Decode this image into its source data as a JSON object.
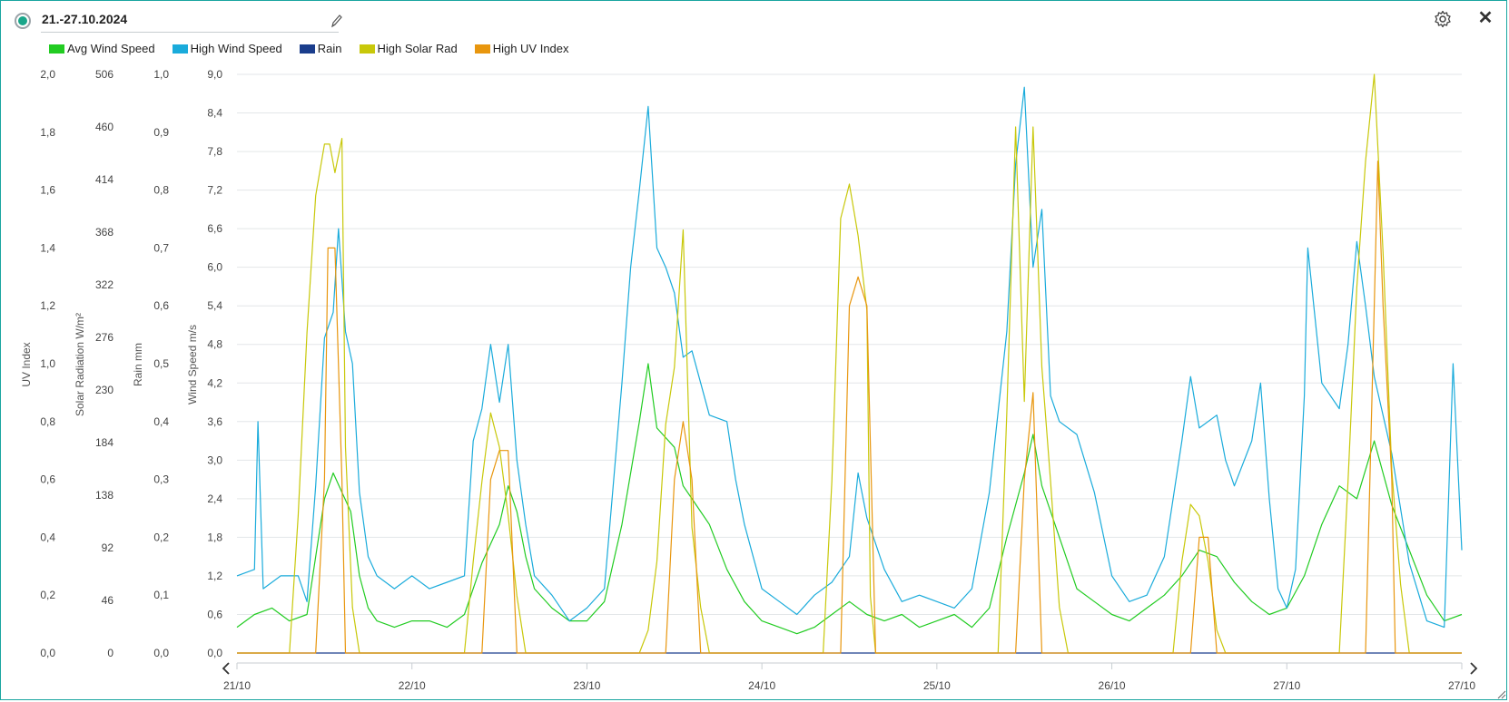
{
  "header": {
    "title": "21.-27.10.2024",
    "edit_icon": "pencil-icon",
    "settings_icon": "gear-icon",
    "close_label": "✕"
  },
  "legend": [
    {
      "label": "Avg Wind Speed",
      "color": "#22cc22"
    },
    {
      "label": "High Wind Speed",
      "color": "#1aabdb"
    },
    {
      "label": "Rain",
      "color": "#1a3d8c"
    },
    {
      "label": "High Solar Rad",
      "color": "#c8c80a"
    },
    {
      "label": "High UV Index",
      "color": "#e8960e"
    }
  ],
  "chart_data": {
    "type": "line",
    "axes": {
      "uv": {
        "label": "UV Index",
        "ticks": [
          "0,0",
          "0,2",
          "0,4",
          "0,6",
          "0,8",
          "1,0",
          "1,2",
          "1,4",
          "1,6",
          "1,8",
          "2,0"
        ],
        "range": [
          0,
          2
        ]
      },
      "solar": {
        "label": "Solar Radiation W/m²",
        "ticks": [
          "0",
          "46",
          "92",
          "138",
          "184",
          "230",
          "276",
          "322",
          "368",
          "414",
          "460",
          "506"
        ],
        "range": [
          0,
          506
        ]
      },
      "rain": {
        "label": "Rain mm",
        "ticks": [
          "0,0",
          "0,1",
          "0,2",
          "0,3",
          "0,4",
          "0,5",
          "0,6",
          "0,7",
          "0,8",
          "0,9",
          "1,0"
        ],
        "range": [
          0,
          1
        ]
      },
      "wind": {
        "label": "Wind Speed m/s",
        "ticks": [
          "0,0",
          "0,6",
          "1,2",
          "1,8",
          "2,4",
          "3,0",
          "3,6",
          "4,2",
          "4,8",
          "5,4",
          "6,0",
          "6,6",
          "7,2",
          "7,8",
          "8,4",
          "9,0"
        ],
        "range": [
          0,
          9
        ]
      }
    },
    "x_ticks": [
      "21/10",
      "22/10",
      "23/10",
      "24/10",
      "25/10",
      "26/10",
      "27/10",
      "27/10"
    ],
    "x_range_days": [
      0,
      7
    ],
    "series": [
      {
        "name": "Avg Wind Speed",
        "color": "#22cc22",
        "axis": "wind",
        "points": [
          [
            0,
            0.4
          ],
          [
            0.1,
            0.6
          ],
          [
            0.2,
            0.7
          ],
          [
            0.3,
            0.5
          ],
          [
            0.4,
            0.6
          ],
          [
            0.45,
            1.5
          ],
          [
            0.5,
            2.4
          ],
          [
            0.55,
            2.8
          ],
          [
            0.6,
            2.5
          ],
          [
            0.65,
            2.2
          ],
          [
            0.7,
            1.2
          ],
          [
            0.75,
            0.7
          ],
          [
            0.8,
            0.5
          ],
          [
            0.9,
            0.4
          ],
          [
            1.0,
            0.5
          ],
          [
            1.1,
            0.5
          ],
          [
            1.2,
            0.4
          ],
          [
            1.3,
            0.6
          ],
          [
            1.4,
            1.4
          ],
          [
            1.5,
            2.0
          ],
          [
            1.55,
            2.6
          ],
          [
            1.6,
            2.2
          ],
          [
            1.65,
            1.5
          ],
          [
            1.7,
            1.0
          ],
          [
            1.8,
            0.7
          ],
          [
            1.9,
            0.5
          ],
          [
            2.0,
            0.5
          ],
          [
            2.1,
            0.8
          ],
          [
            2.2,
            2.0
          ],
          [
            2.3,
            3.6
          ],
          [
            2.35,
            4.5
          ],
          [
            2.4,
            3.5
          ],
          [
            2.5,
            3.2
          ],
          [
            2.55,
            2.6
          ],
          [
            2.6,
            2.4
          ],
          [
            2.7,
            2.0
          ],
          [
            2.8,
            1.3
          ],
          [
            2.9,
            0.8
          ],
          [
            3.0,
            0.5
          ],
          [
            3.1,
            0.4
          ],
          [
            3.2,
            0.3
          ],
          [
            3.3,
            0.4
          ],
          [
            3.4,
            0.6
          ],
          [
            3.5,
            0.8
          ],
          [
            3.6,
            0.6
          ],
          [
            3.7,
            0.5
          ],
          [
            3.8,
            0.6
          ],
          [
            3.9,
            0.4
          ],
          [
            4.0,
            0.5
          ],
          [
            4.1,
            0.6
          ],
          [
            4.2,
            0.4
          ],
          [
            4.3,
            0.7
          ],
          [
            4.4,
            1.8
          ],
          [
            4.5,
            2.8
          ],
          [
            4.55,
            3.4
          ],
          [
            4.6,
            2.6
          ],
          [
            4.7,
            1.8
          ],
          [
            4.8,
            1.0
          ],
          [
            4.9,
            0.8
          ],
          [
            5.0,
            0.6
          ],
          [
            5.1,
            0.5
          ],
          [
            5.2,
            0.7
          ],
          [
            5.3,
            0.9
          ],
          [
            5.4,
            1.2
          ],
          [
            5.5,
            1.6
          ],
          [
            5.6,
            1.5
          ],
          [
            5.7,
            1.1
          ],
          [
            5.8,
            0.8
          ],
          [
            5.9,
            0.6
          ],
          [
            6.0,
            0.7
          ],
          [
            6.1,
            1.2
          ],
          [
            6.2,
            2.0
          ],
          [
            6.3,
            2.6
          ],
          [
            6.4,
            2.4
          ],
          [
            6.5,
            3.3
          ],
          [
            6.6,
            2.3
          ],
          [
            6.7,
            1.6
          ],
          [
            6.8,
            0.9
          ],
          [
            6.9,
            0.5
          ],
          [
            7.0,
            0.6
          ]
        ]
      },
      {
        "name": "High Wind Speed",
        "color": "#1aabdb",
        "axis": "wind",
        "points": [
          [
            0,
            1.2
          ],
          [
            0.1,
            1.3
          ],
          [
            0.12,
            3.6
          ],
          [
            0.15,
            1.0
          ],
          [
            0.25,
            1.2
          ],
          [
            0.35,
            1.2
          ],
          [
            0.4,
            0.8
          ],
          [
            0.45,
            2.6
          ],
          [
            0.5,
            4.9
          ],
          [
            0.55,
            5.3
          ],
          [
            0.58,
            6.6
          ],
          [
            0.62,
            5.0
          ],
          [
            0.66,
            4.5
          ],
          [
            0.7,
            2.5
          ],
          [
            0.75,
            1.5
          ],
          [
            0.8,
            1.2
          ],
          [
            0.9,
            1.0
          ],
          [
            1.0,
            1.2
          ],
          [
            1.1,
            1.0
          ],
          [
            1.2,
            1.1
          ],
          [
            1.3,
            1.2
          ],
          [
            1.35,
            3.3
          ],
          [
            1.4,
            3.8
          ],
          [
            1.45,
            4.8
          ],
          [
            1.5,
            3.9
          ],
          [
            1.55,
            4.8
          ],
          [
            1.6,
            3.0
          ],
          [
            1.65,
            2.0
          ],
          [
            1.7,
            1.2
          ],
          [
            1.8,
            0.9
          ],
          [
            1.9,
            0.5
          ],
          [
            2.0,
            0.7
          ],
          [
            2.1,
            1.0
          ],
          [
            2.2,
            4.2
          ],
          [
            2.25,
            6.0
          ],
          [
            2.3,
            7.2
          ],
          [
            2.35,
            8.5
          ],
          [
            2.4,
            6.3
          ],
          [
            2.45,
            6.0
          ],
          [
            2.5,
            5.6
          ],
          [
            2.55,
            4.6
          ],
          [
            2.6,
            4.7
          ],
          [
            2.7,
            3.7
          ],
          [
            2.8,
            3.6
          ],
          [
            2.85,
            2.7
          ],
          [
            2.9,
            2.0
          ],
          [
            3.0,
            1.0
          ],
          [
            3.1,
            0.8
          ],
          [
            3.2,
            0.6
          ],
          [
            3.3,
            0.9
          ],
          [
            3.4,
            1.1
          ],
          [
            3.5,
            1.5
          ],
          [
            3.55,
            2.8
          ],
          [
            3.6,
            2.1
          ],
          [
            3.7,
            1.3
          ],
          [
            3.8,
            0.8
          ],
          [
            3.9,
            0.9
          ],
          [
            4.0,
            0.8
          ],
          [
            4.1,
            0.7
          ],
          [
            4.2,
            1.0
          ],
          [
            4.3,
            2.5
          ],
          [
            4.4,
            5.0
          ],
          [
            4.45,
            7.6
          ],
          [
            4.5,
            8.8
          ],
          [
            4.55,
            6.0
          ],
          [
            4.6,
            6.9
          ],
          [
            4.65,
            4.0
          ],
          [
            4.7,
            3.6
          ],
          [
            4.8,
            3.4
          ],
          [
            4.9,
            2.5
          ],
          [
            5.0,
            1.2
          ],
          [
            5.1,
            0.8
          ],
          [
            5.2,
            0.9
          ],
          [
            5.3,
            1.5
          ],
          [
            5.4,
            3.3
          ],
          [
            5.45,
            4.3
          ],
          [
            5.5,
            3.5
          ],
          [
            5.6,
            3.7
          ],
          [
            5.65,
            3.0
          ],
          [
            5.7,
            2.6
          ],
          [
            5.8,
            3.3
          ],
          [
            5.85,
            4.2
          ],
          [
            5.9,
            2.4
          ],
          [
            5.95,
            1.0
          ],
          [
            6.0,
            0.7
          ],
          [
            6.05,
            1.3
          ],
          [
            6.1,
            4.0
          ],
          [
            6.12,
            6.3
          ],
          [
            6.2,
            4.2
          ],
          [
            6.3,
            3.8
          ],
          [
            6.35,
            4.8
          ],
          [
            6.4,
            6.4
          ],
          [
            6.45,
            5.4
          ],
          [
            6.5,
            4.3
          ],
          [
            6.6,
            3.1
          ],
          [
            6.7,
            1.4
          ],
          [
            6.8,
            0.5
          ],
          [
            6.9,
            0.4
          ],
          [
            6.95,
            4.5
          ],
          [
            7.0,
            1.6
          ]
        ]
      },
      {
        "name": "Rain",
        "color": "#1a3d8c",
        "axis": "rain",
        "points": [
          [
            0,
            0
          ],
          [
            7,
            0
          ]
        ]
      },
      {
        "name": "High Solar Rad",
        "color": "#c8c80a",
        "axis": "solar",
        "points": [
          [
            0,
            0
          ],
          [
            0.3,
            0
          ],
          [
            0.35,
            120
          ],
          [
            0.4,
            280
          ],
          [
            0.45,
            400
          ],
          [
            0.5,
            445
          ],
          [
            0.53,
            445
          ],
          [
            0.56,
            420
          ],
          [
            0.6,
            450
          ],
          [
            0.62,
            180
          ],
          [
            0.66,
            40
          ],
          [
            0.7,
            0
          ],
          [
            1.3,
            0
          ],
          [
            1.35,
            80
          ],
          [
            1.4,
            150
          ],
          [
            1.45,
            210
          ],
          [
            1.5,
            180
          ],
          [
            1.55,
            120
          ],
          [
            1.6,
            50
          ],
          [
            1.65,
            0
          ],
          [
            2.3,
            0
          ],
          [
            2.35,
            20
          ],
          [
            2.4,
            80
          ],
          [
            2.45,
            200
          ],
          [
            2.5,
            250
          ],
          [
            2.55,
            370
          ],
          [
            2.6,
            110
          ],
          [
            2.65,
            40
          ],
          [
            2.7,
            0
          ],
          [
            3.35,
            0
          ],
          [
            3.4,
            150
          ],
          [
            3.45,
            380
          ],
          [
            3.5,
            410
          ],
          [
            3.55,
            365
          ],
          [
            3.6,
            300
          ],
          [
            3.62,
            50
          ],
          [
            3.65,
            0
          ],
          [
            4.35,
            0
          ],
          [
            4.4,
            210
          ],
          [
            4.45,
            460
          ],
          [
            4.5,
            220
          ],
          [
            4.55,
            460
          ],
          [
            4.6,
            250
          ],
          [
            4.65,
            150
          ],
          [
            4.7,
            40
          ],
          [
            4.75,
            0
          ],
          [
            5.35,
            0
          ],
          [
            5.4,
            80
          ],
          [
            5.45,
            130
          ],
          [
            5.5,
            120
          ],
          [
            5.55,
            80
          ],
          [
            5.6,
            20
          ],
          [
            5.65,
            0
          ],
          [
            6.3,
            0
          ],
          [
            6.35,
            150
          ],
          [
            6.4,
            320
          ],
          [
            6.45,
            430
          ],
          [
            6.5,
            506
          ],
          [
            6.55,
            350
          ],
          [
            6.6,
            160
          ],
          [
            6.65,
            60
          ],
          [
            6.7,
            0
          ],
          [
            7.0,
            0
          ]
        ]
      },
      {
        "name": "High UV Index",
        "color": "#e8960e",
        "axis": "uv",
        "points": [
          [
            0,
            0
          ],
          [
            0.45,
            0
          ],
          [
            0.5,
            0.6
          ],
          [
            0.52,
            1.4
          ],
          [
            0.56,
            1.4
          ],
          [
            0.6,
            0.6
          ],
          [
            0.62,
            0.0
          ],
          [
            1.4,
            0
          ],
          [
            1.45,
            0.6
          ],
          [
            1.5,
            0.7
          ],
          [
            1.55,
            0.7
          ],
          [
            1.6,
            0.0
          ],
          [
            2.45,
            0
          ],
          [
            2.5,
            0.6
          ],
          [
            2.55,
            0.8
          ],
          [
            2.6,
            0.6
          ],
          [
            2.65,
            0.0
          ],
          [
            3.45,
            0
          ],
          [
            3.5,
            1.2
          ],
          [
            3.55,
            1.3
          ],
          [
            3.6,
            1.2
          ],
          [
            3.65,
            0.0
          ],
          [
            4.45,
            0
          ],
          [
            4.5,
            0.6
          ],
          [
            4.55,
            0.9
          ],
          [
            4.6,
            0.0
          ],
          [
            5.45,
            0
          ],
          [
            5.5,
            0.4
          ],
          [
            5.55,
            0.4
          ],
          [
            5.6,
            0.0
          ],
          [
            6.45,
            0
          ],
          [
            6.5,
            1.2
          ],
          [
            6.52,
            1.7
          ],
          [
            6.55,
            1.2
          ],
          [
            6.6,
            0.6
          ],
          [
            6.62,
            0.0
          ],
          [
            7.0,
            0
          ]
        ]
      }
    ],
    "grid": true,
    "legend_position": "top-left"
  }
}
